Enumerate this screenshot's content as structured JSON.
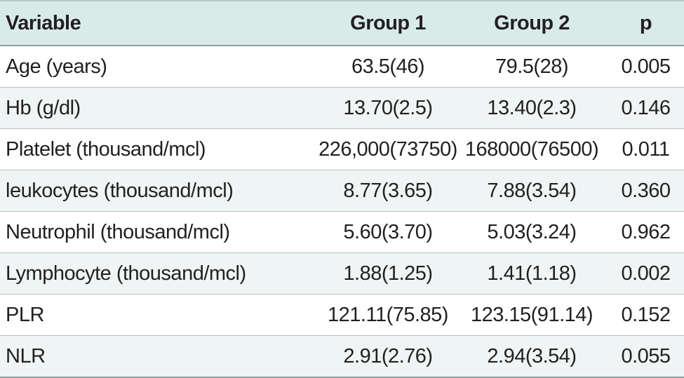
{
  "table": {
    "headers": [
      "Variable",
      "Group 1",
      "Group 2",
      "p"
    ],
    "rows": [
      [
        "Age (years)",
        "63.5(46)",
        "79.5(28)",
        "0.005"
      ],
      [
        "Hb (g/dl)",
        "13.70(2.5)",
        "13.40(2.3)",
        "0.146"
      ],
      [
        "Platelet (thousand/mcl)",
        "226,000(73750)",
        "168000(76500)",
        "0.011"
      ],
      [
        "leukocytes (thousand/mcl)",
        "8.77(3.65)",
        "7.88(3.54)",
        "0.360"
      ],
      [
        "Neutrophil (thousand/mcl)",
        "5.60(3.70)",
        "5.03(3.24)",
        "0.962"
      ],
      [
        "Lymphocyte (thousand/mcl)",
        "1.88(1.25)",
        "1.41(1.18)",
        "0.002"
      ],
      [
        "PLR",
        "121.11(75.85)",
        "123.15(91.14)",
        "0.152"
      ],
      [
        "NLR",
        "2.91(2.76)",
        "2.94(3.54)",
        "0.055"
      ]
    ]
  }
}
